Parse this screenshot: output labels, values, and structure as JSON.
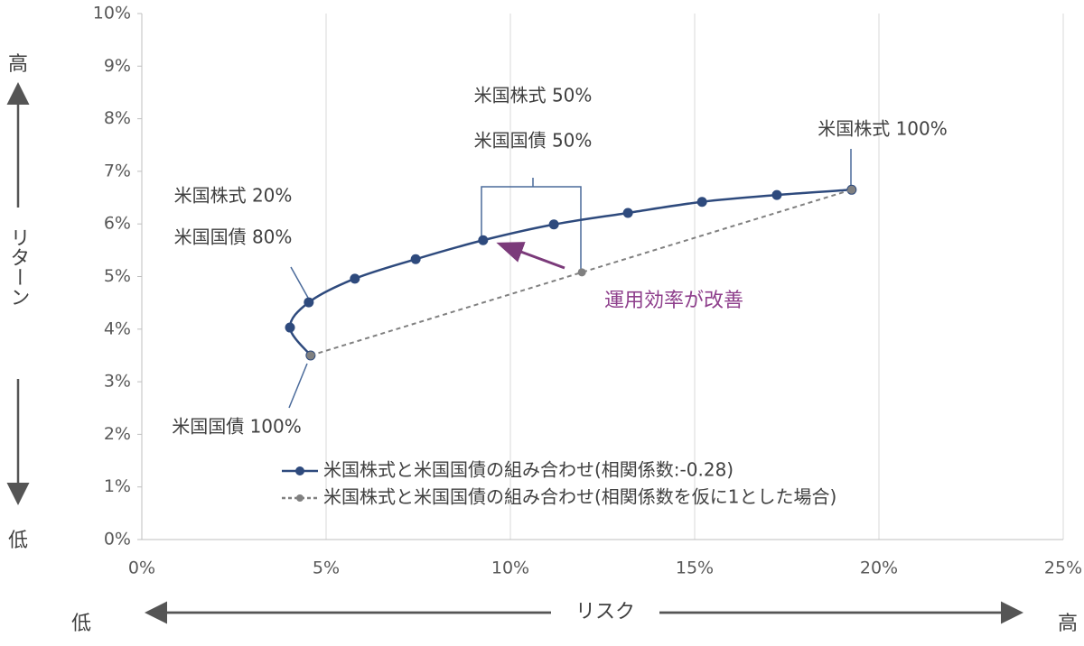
{
  "chart_data": {
    "type": "line",
    "x_label": "リスク",
    "y_label": "リターン",
    "x_low": "低",
    "x_high": "高",
    "y_low": "低",
    "y_high": "高",
    "xlim": [
      0,
      25
    ],
    "ylim": [
      0,
      10
    ],
    "xticks": [
      {
        "value": 0,
        "label": "0%"
      },
      {
        "value": 5,
        "label": "5%"
      },
      {
        "value": 10,
        "label": "10%"
      },
      {
        "value": 15,
        "label": "15%"
      },
      {
        "value": 20,
        "label": "20%"
      },
      {
        "value": 25,
        "label": "25%"
      }
    ],
    "yticks": [
      {
        "value": 0,
        "label": "0%"
      },
      {
        "value": 1,
        "label": "1%"
      },
      {
        "value": 2,
        "label": "2%"
      },
      {
        "value": 3,
        "label": "3%"
      },
      {
        "value": 4,
        "label": "4%"
      },
      {
        "value": 5,
        "label": "5%"
      },
      {
        "value": 6,
        "label": "6%"
      },
      {
        "value": 7,
        "label": "7%"
      },
      {
        "value": 8,
        "label": "8%"
      },
      {
        "value": 9,
        "label": "9%"
      },
      {
        "value": 10,
        "label": "10%"
      }
    ],
    "grid": true,
    "series": [
      {
        "name": "米国株式と米国国債の組み合わせ(相関係数:-0.28)",
        "color": "#2e4a7d",
        "dashed": false,
        "x": [
          4.58,
          4.02,
          4.53,
          5.78,
          7.43,
          9.26,
          11.18,
          13.19,
          15.2,
          17.23,
          19.26
        ],
        "values": [
          3.5,
          4.03,
          4.51,
          4.96,
          5.33,
          5.69,
          5.99,
          6.21,
          6.42,
          6.55,
          6.65
        ]
      },
      {
        "name": "米国株式と米国国債の組み合わせ(相関係数を仮に1とした場合)",
        "color": "#808080",
        "dashed": true,
        "x": [
          4.58,
          11.94,
          19.26
        ],
        "values": [
          3.5,
          5.08,
          6.65
        ]
      }
    ],
    "annotations": [
      "米国株式 50%",
      "米国国債 50%",
      "米国株式 100%",
      "米国株式 20%",
      "米国国債 80%",
      "米国国債 100%",
      "運用効率が改善"
    ]
  }
}
